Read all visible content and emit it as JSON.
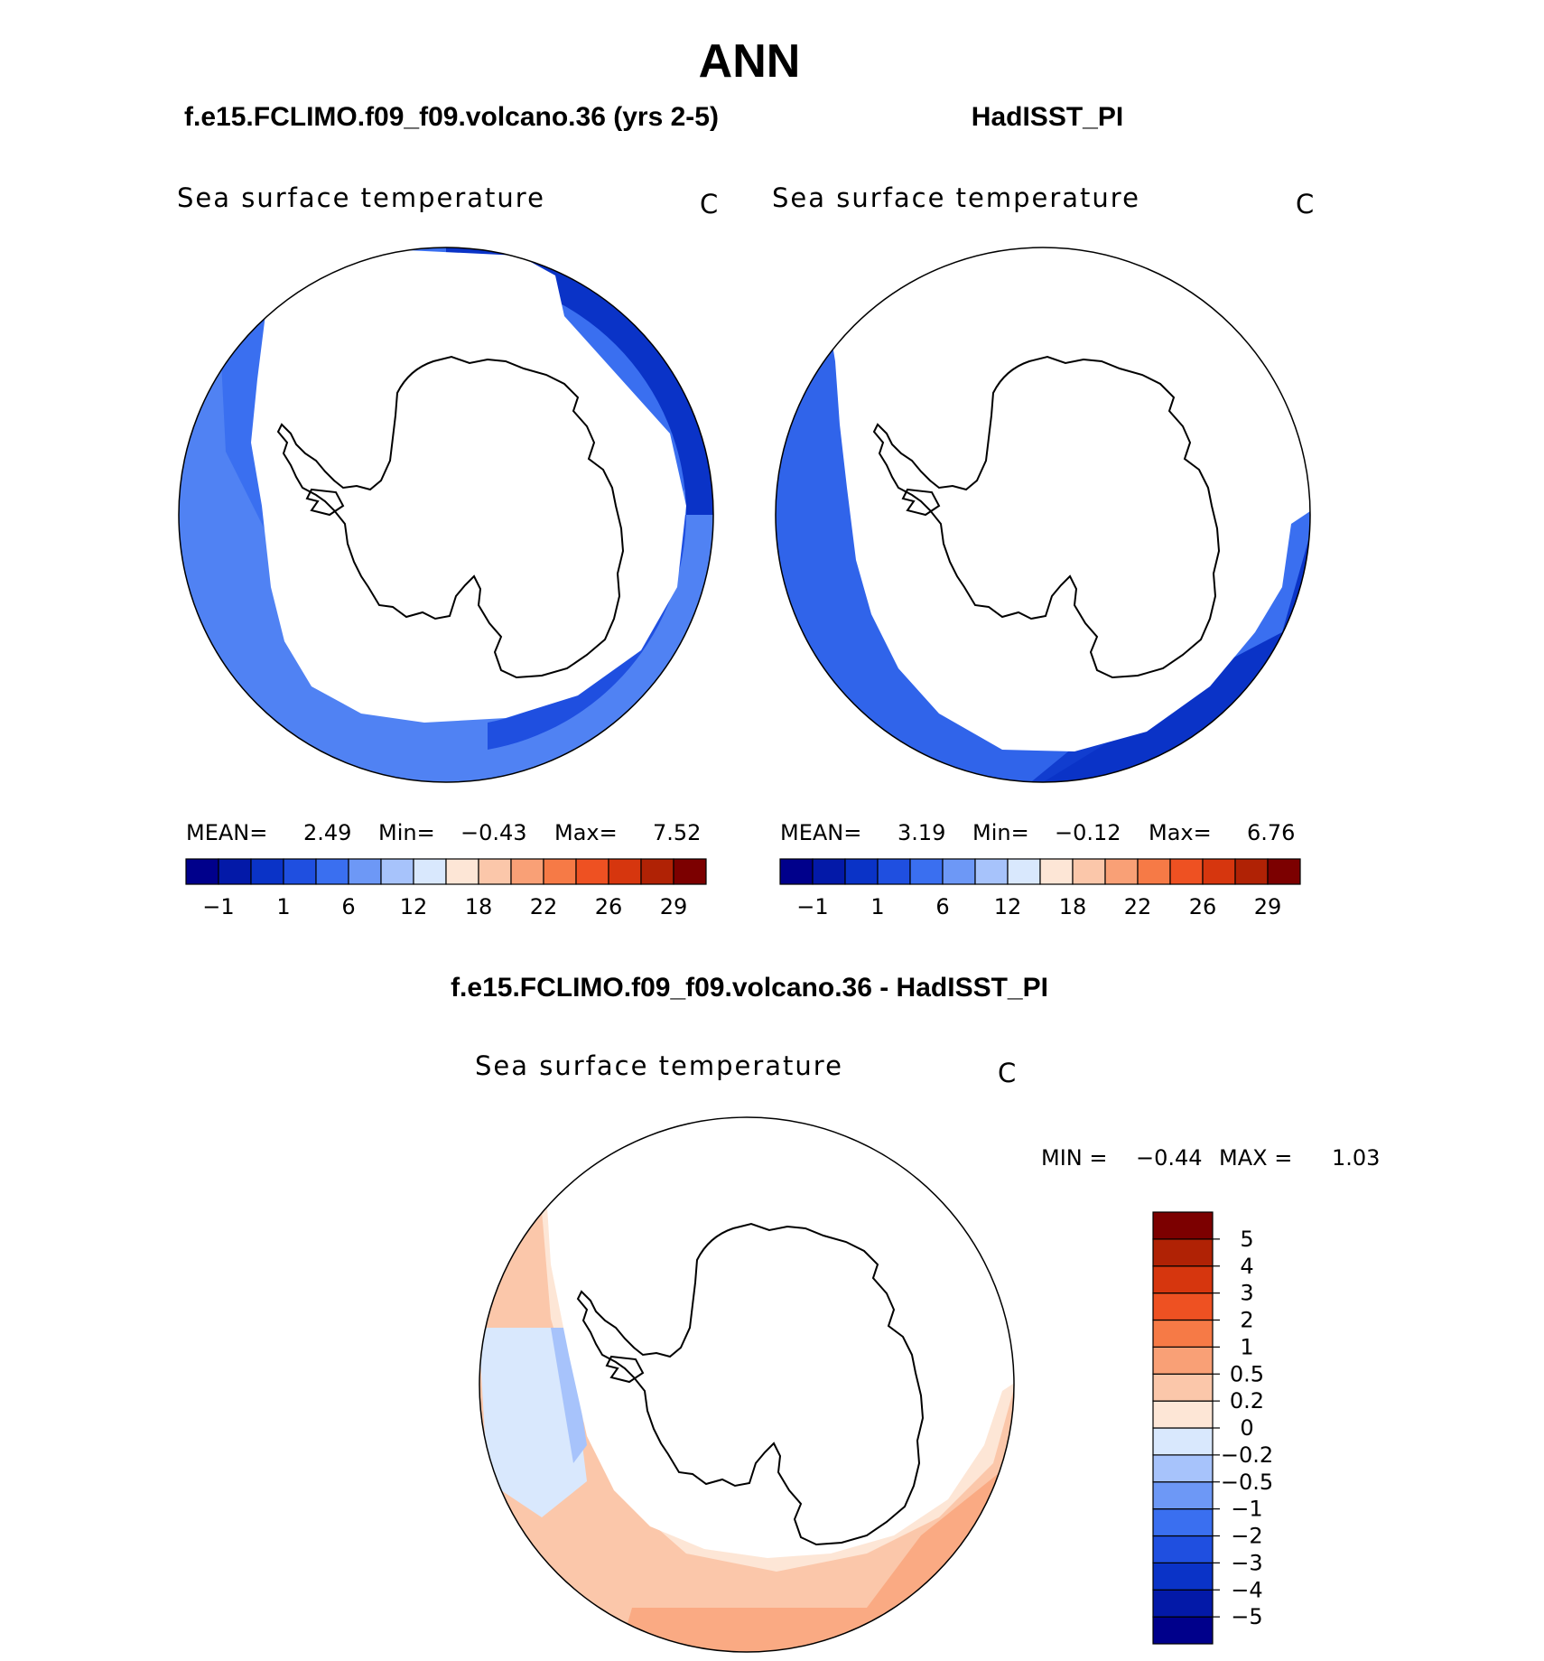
{
  "chart_data": {
    "type": "heatmap",
    "title": "ANN",
    "panels": [
      {
        "id": "test",
        "header": "f.e15.FCLIMO.f09_f09.volcano.36 (yrs 2-5)",
        "variable": "Sea surface temperature",
        "units": "C",
        "stats": {
          "mean_label": "MEAN=",
          "mean": "2.49",
          "min_label": "Min=",
          "min": "−0.43",
          "max_label": "Max=",
          "max": "7.52"
        }
      },
      {
        "id": "obs",
        "header": "HadISST_PI",
        "variable": "Sea surface temperature",
        "units": "C",
        "stats": {
          "mean_label": "MEAN=",
          "mean": "3.19",
          "min_label": "Min=",
          "min": "−0.12",
          "max_label": "Max=",
          "max": "6.76"
        }
      },
      {
        "id": "diff",
        "header": "f.e15.FCLIMO.f09_f09.volcano.36 - HadISST_PI",
        "variable": "Sea surface temperature",
        "units": "C",
        "stats": {
          "min_label": "MIN =",
          "min": "−0.44",
          "max_label": "MAX =",
          "max": "1.03"
        }
      }
    ],
    "sst_colorbar": {
      "colors": [
        "#00008b",
        "#0319a8",
        "#0a33c7",
        "#1f4fe0",
        "#3a6ff0",
        "#6d98f6",
        "#a7c3fb",
        "#d9e8fd",
        "#fde6d6",
        "#fbc7aa",
        "#f9a076",
        "#f67a46",
        "#ee5122",
        "#d6360e",
        "#b02205",
        "#7c0000"
      ],
      "tick_labels": [
        "−1",
        "1",
        "6",
        "12",
        "18",
        "22",
        "26",
        "29"
      ]
    },
    "diff_colorbar": {
      "colors": [
        "#00008b",
        "#0319a8",
        "#0a33c7",
        "#1f4fe0",
        "#3a6ff0",
        "#6d98f6",
        "#a7c3fb",
        "#d9e8fd",
        "#fde6d6",
        "#fbc7aa",
        "#f9a076",
        "#f67a46",
        "#ee5122",
        "#d6360e",
        "#b02205",
        "#7c0000"
      ],
      "levels": [
        "−5",
        "−4",
        "−3",
        "−2",
        "−1",
        "−0.5",
        "−0.2",
        "0",
        "0.2",
        "0.5",
        "1",
        "2",
        "3",
        "4",
        "5"
      ]
    }
  }
}
